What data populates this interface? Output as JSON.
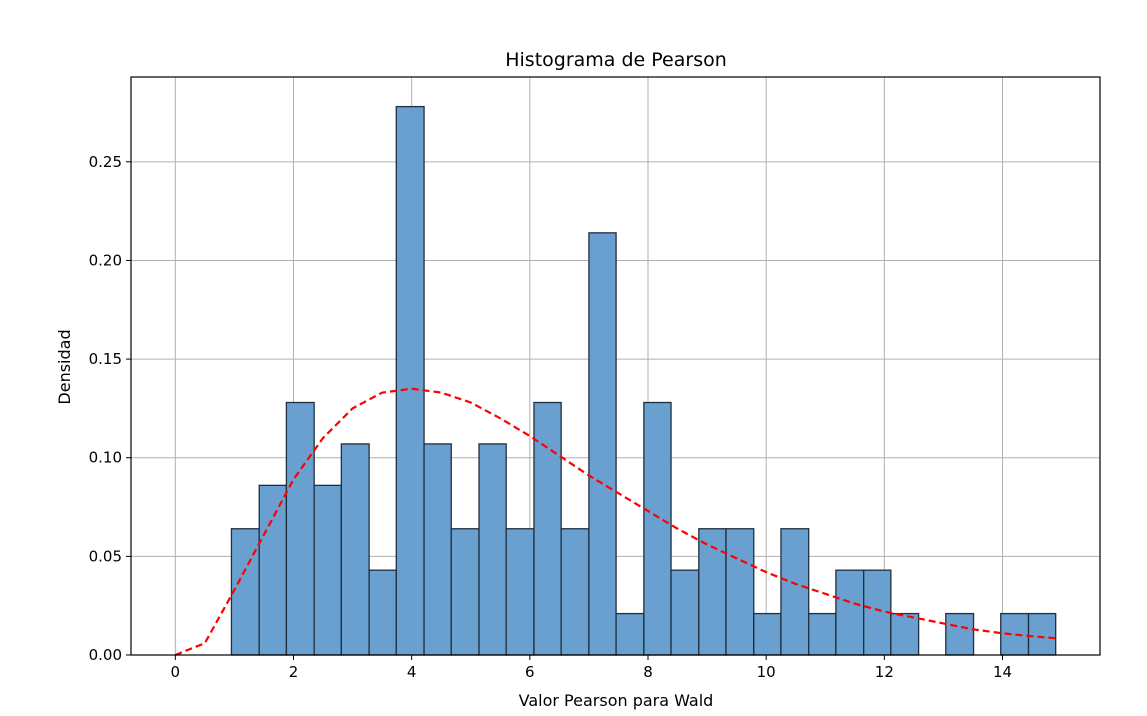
{
  "chart_data": {
    "type": "bar",
    "title": "Histograma de Pearson",
    "xlabel": "Valor Pearson para Wald",
    "ylabel": "Densidad",
    "xlim": [
      -0.75,
      15.65
    ],
    "ylim": [
      0,
      0.293
    ],
    "grid": true,
    "x_ticks": [
      0,
      2,
      4,
      6,
      8,
      10,
      12,
      14
    ],
    "x_tick_labels": [
      "0",
      "2",
      "4",
      "6",
      "8",
      "10",
      "12",
      "14"
    ],
    "y_ticks": [
      0.0,
      0.05,
      0.1,
      0.15,
      0.2,
      0.25
    ],
    "y_tick_labels": [
      "0.00",
      "0.05",
      "0.10",
      "0.15",
      "0.20",
      "0.25"
    ],
    "bar_color": "#6aa0cf",
    "bar_edge_color": "#1f2f3f",
    "bins": [
      {
        "x0": 0.95,
        "x1": 1.42,
        "value": 0.064
      },
      {
        "x0": 1.42,
        "x1": 1.88,
        "value": 0.086
      },
      {
        "x0": 1.88,
        "x1": 2.35,
        "value": 0.128
      },
      {
        "x0": 2.35,
        "x1": 2.81,
        "value": 0.086
      },
      {
        "x0": 2.81,
        "x1": 3.28,
        "value": 0.107
      },
      {
        "x0": 3.28,
        "x1": 3.74,
        "value": 0.043
      },
      {
        "x0": 3.74,
        "x1": 4.21,
        "value": 0.278
      },
      {
        "x0": 4.21,
        "x1": 4.67,
        "value": 0.107
      },
      {
        "x0": 4.67,
        "x1": 5.14,
        "value": 0.064
      },
      {
        "x0": 5.14,
        "x1": 5.6,
        "value": 0.107
      },
      {
        "x0": 5.6,
        "x1": 6.07,
        "value": 0.064
      },
      {
        "x0": 6.07,
        "x1": 6.53,
        "value": 0.128
      },
      {
        "x0": 6.53,
        "x1": 7.0,
        "value": 0.064
      },
      {
        "x0": 7.0,
        "x1": 7.46,
        "value": 0.214
      },
      {
        "x0": 7.46,
        "x1": 7.93,
        "value": 0.021
      },
      {
        "x0": 7.93,
        "x1": 8.39,
        "value": 0.128
      },
      {
        "x0": 8.39,
        "x1": 8.86,
        "value": 0.043
      },
      {
        "x0": 8.86,
        "x1": 9.32,
        "value": 0.064
      },
      {
        "x0": 9.32,
        "x1": 9.79,
        "value": 0.064
      },
      {
        "x0": 9.79,
        "x1": 10.25,
        "value": 0.021
      },
      {
        "x0": 10.25,
        "x1": 10.72,
        "value": 0.064
      },
      {
        "x0": 10.72,
        "x1": 11.18,
        "value": 0.021
      },
      {
        "x0": 11.18,
        "x1": 11.65,
        "value": 0.043
      },
      {
        "x0": 11.65,
        "x1": 12.11,
        "value": 0.043
      },
      {
        "x0": 12.11,
        "x1": 12.58,
        "value": 0.021
      },
      {
        "x0": 12.58,
        "x1": 13.04,
        "value": 0.0
      },
      {
        "x0": 13.04,
        "x1": 13.51,
        "value": 0.021
      },
      {
        "x0": 13.51,
        "x1": 13.97,
        "value": 0.0
      },
      {
        "x0": 13.97,
        "x1": 14.44,
        "value": 0.021
      },
      {
        "x0": 14.44,
        "x1": 14.9,
        "value": 0.021
      }
    ],
    "curve": {
      "style": "dashed",
      "color": "#ff0000",
      "x": [
        0,
        0.5,
        1,
        1.5,
        2,
        2.5,
        3,
        3.5,
        4,
        4.5,
        5,
        5.5,
        6,
        6.5,
        7,
        7.5,
        8,
        8.5,
        9,
        9.5,
        10,
        10.5,
        11,
        11.5,
        12,
        12.5,
        13,
        13.5,
        14,
        14.5,
        14.9
      ],
      "y": [
        0.0,
        0.006,
        0.033,
        0.061,
        0.089,
        0.11,
        0.125,
        0.133,
        0.135,
        0.133,
        0.128,
        0.12,
        0.111,
        0.101,
        0.091,
        0.082,
        0.073,
        0.064,
        0.056,
        0.049,
        0.042,
        0.036,
        0.031,
        0.026,
        0.022,
        0.019,
        0.016,
        0.013,
        0.011,
        0.0095,
        0.0085
      ]
    }
  }
}
